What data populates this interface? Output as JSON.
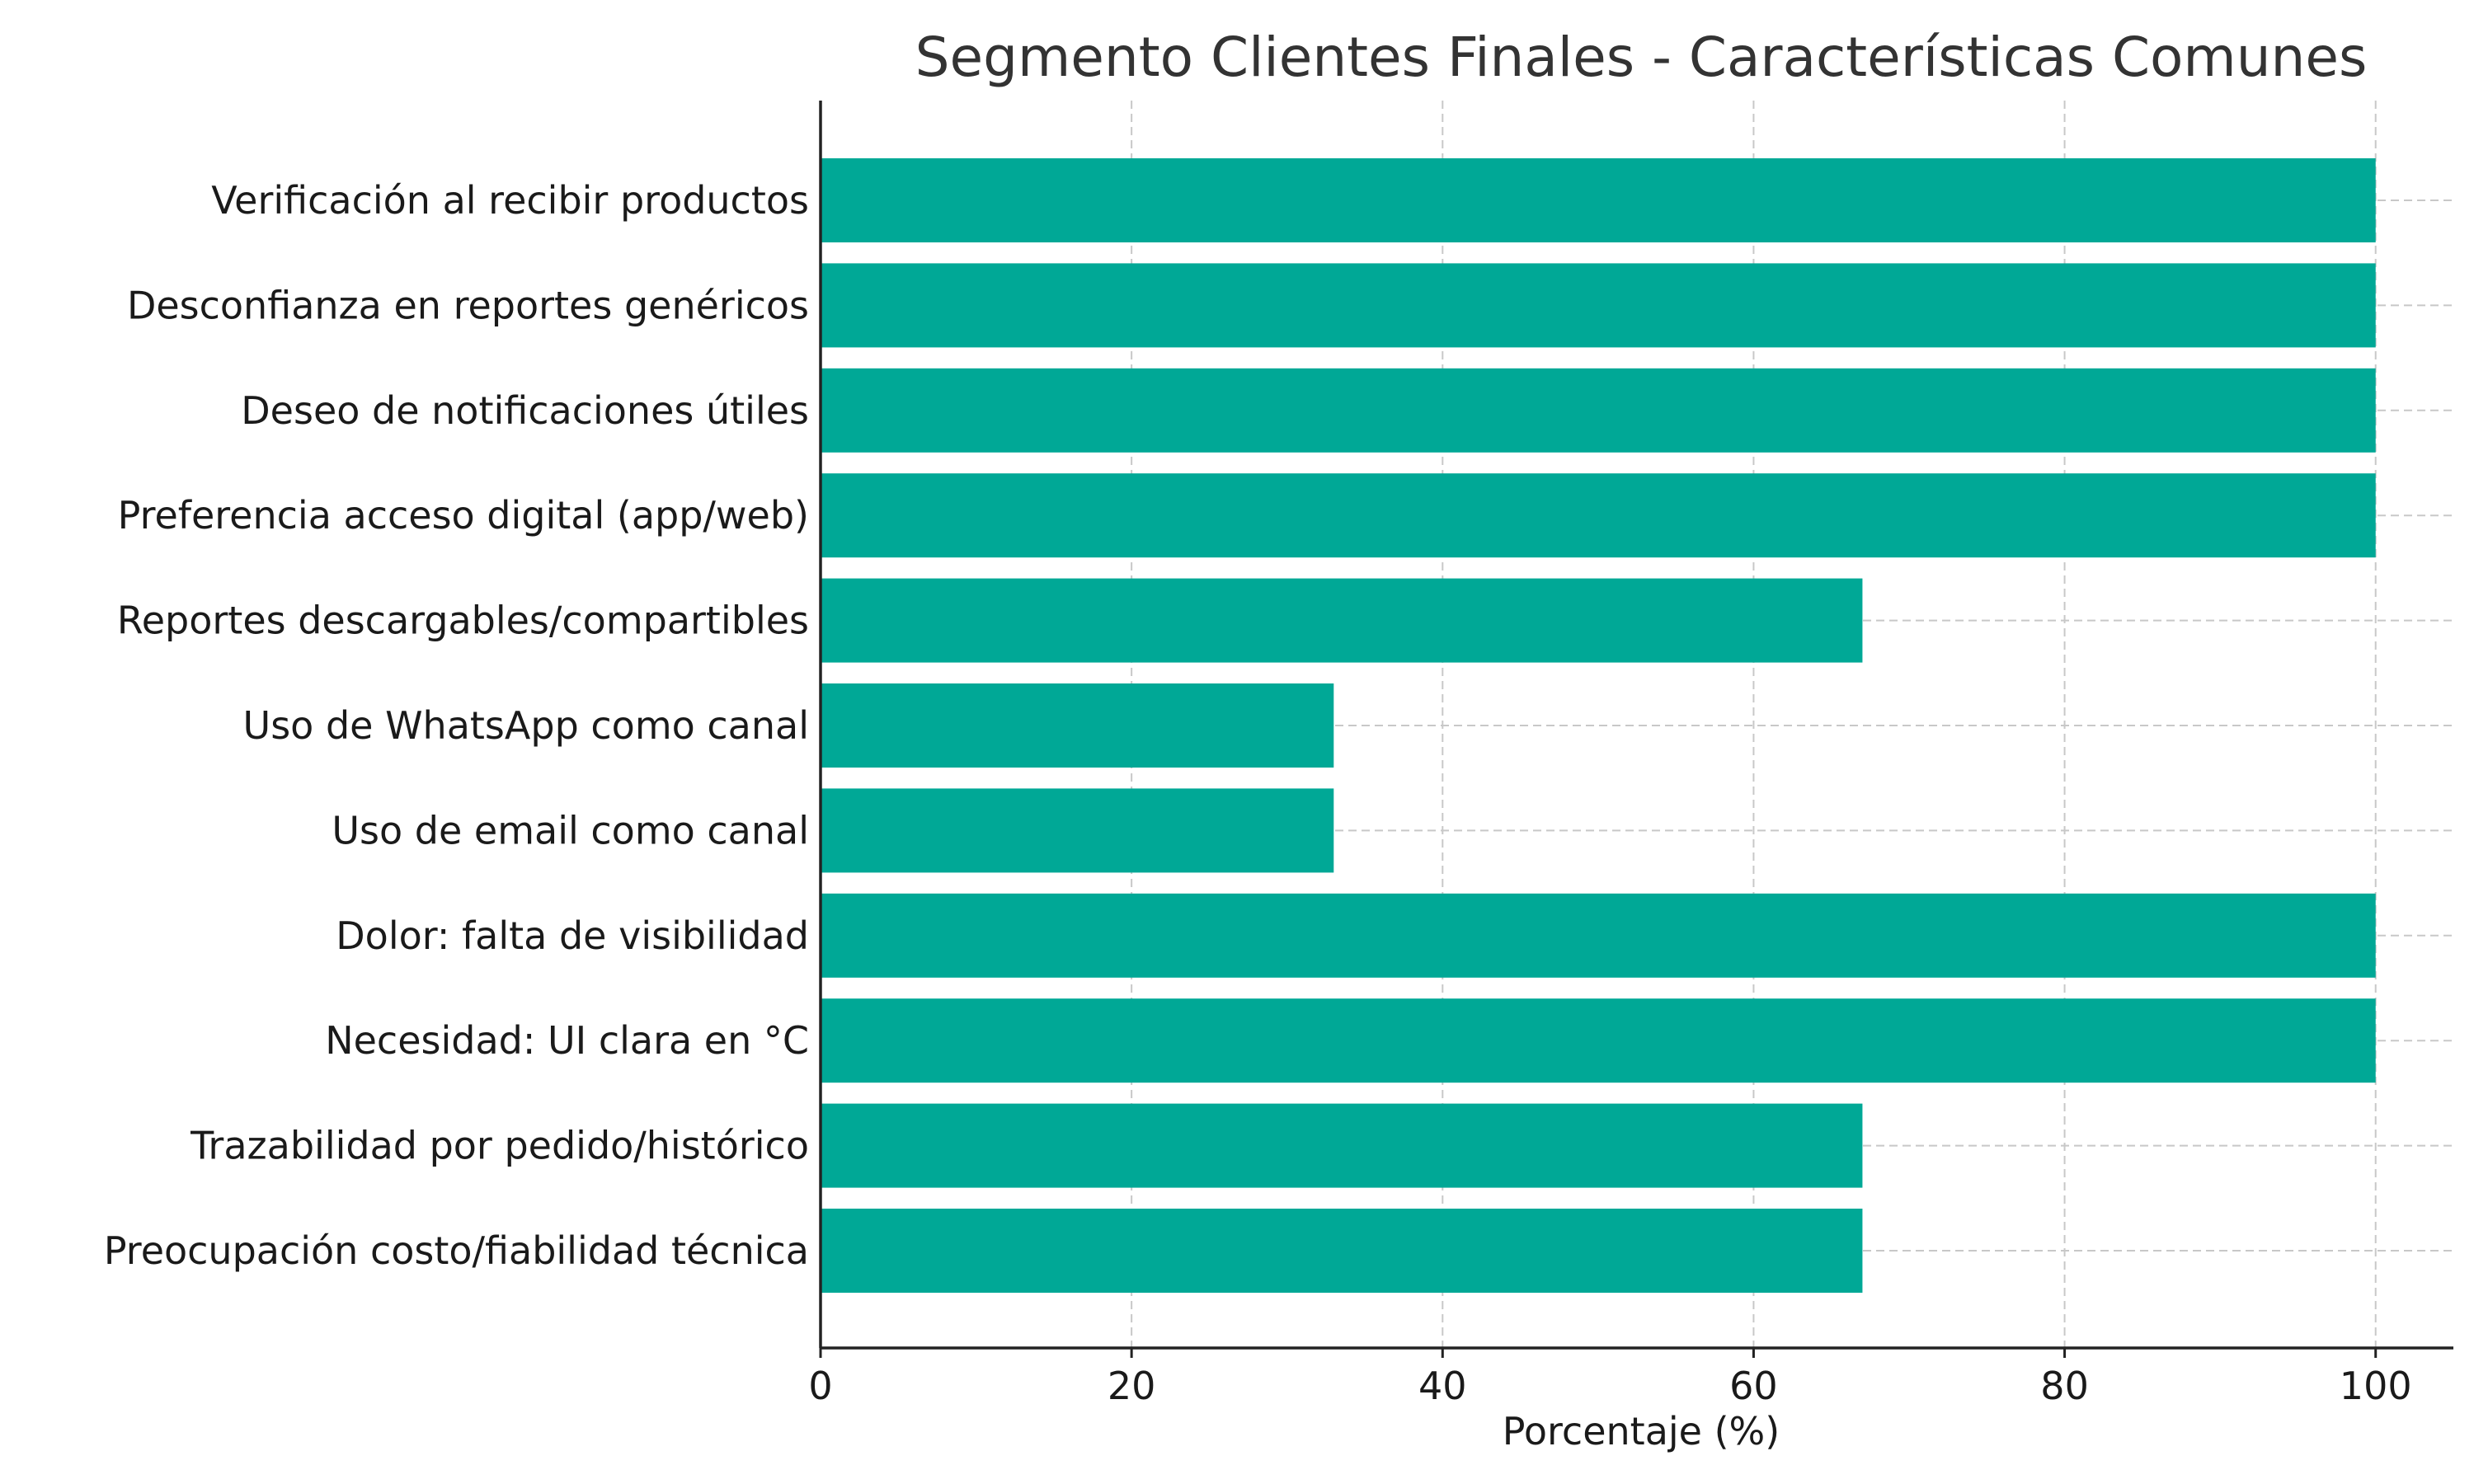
{
  "chart_data": {
    "type": "bar",
    "orientation": "horizontal",
    "title": "Segmento Clientes Finales - Características Comunes",
    "xlabel": "Porcentaje (%)",
    "ylabel": "",
    "xlim": [
      0,
      105
    ],
    "xticks": [
      0,
      20,
      40,
      60,
      80,
      100
    ],
    "grid": true,
    "color": "#00A896",
    "categories": [
      "Verificación al recibir productos",
      "Desconfianza en reportes genéricos",
      "Deseo de notificaciones útiles",
      "Preferencia acceso digital (app/web)",
      "Reportes descargables/compartibles",
      "Uso de WhatsApp como canal",
      "Uso de email como canal",
      "Dolor: falta de visibilidad",
      "Necesidad: UI clara en °C",
      "Trazabilidad por pedido/histórico",
      "Preocupación costo/fiabilidad técnica"
    ],
    "values": [
      100,
      100,
      100,
      100,
      67,
      33,
      33,
      100,
      100,
      67,
      67
    ]
  }
}
